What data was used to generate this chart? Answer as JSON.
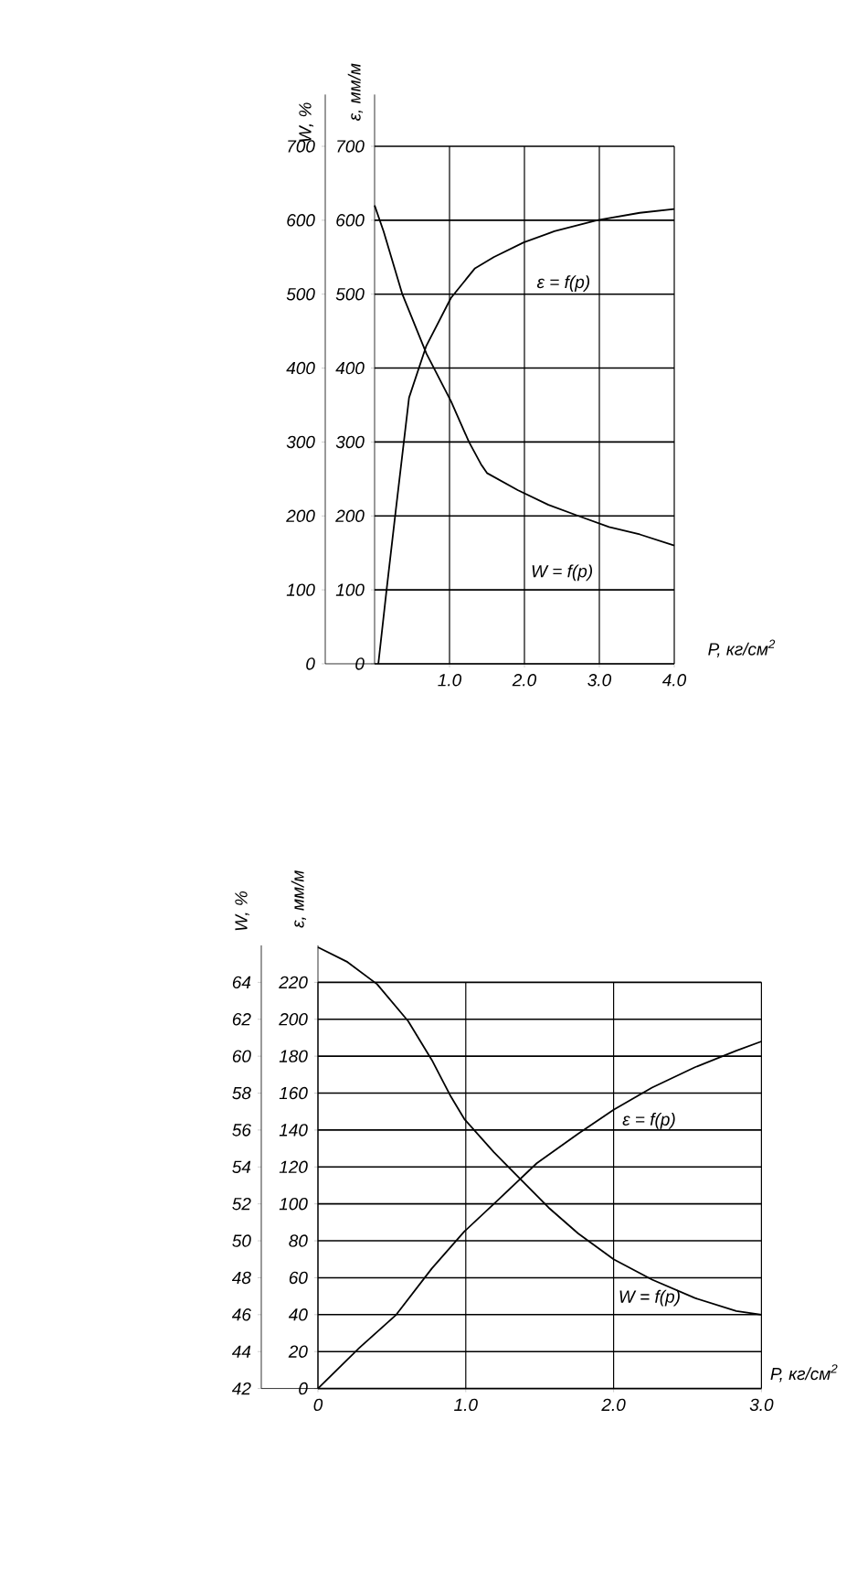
{
  "chart_data": [
    {
      "type": "line",
      "xlabel": "Р, кг/см$^{2}$",
      "ylabel": "W, %",
      "y2label": "ε, мм/м",
      "xlim": [
        0,
        4
      ],
      "xticks": [
        {
          "value": 1,
          "label": "1.0"
        },
        {
          "value": 2,
          "label": "2.0"
        },
        {
          "value": 3,
          "label": "3.0"
        },
        {
          "value": 4,
          "label": "4.0"
        }
      ],
      "ylim": [
        0,
        770
      ],
      "yticks": [
        0,
        100,
        200,
        300,
        400,
        500,
        600,
        700
      ],
      "y2lim": [
        0,
        770
      ],
      "y2ticks": [
        0,
        100,
        200,
        300,
        400,
        500,
        600,
        700
      ],
      "grid": true,
      "series": [
        {
          "name": "ε = f(p)",
          "color": "#000000",
          "axis": "y2",
          "x": [
            0.05,
            0.16,
            0.28,
            0.46,
            0.69,
            1.02,
            1.34,
            1.59,
            1.99,
            2.4,
            2.97,
            3.54,
            4.0
          ],
          "values": [
            0,
            100,
            205,
            360,
            430,
            495,
            535,
            550,
            570,
            585,
            600,
            610,
            615
          ]
        },
        {
          "name": "W = f(p)",
          "color": "#000000",
          "x": [
            0,
            0.12,
            0.37,
            0.69,
            1.02,
            1.26,
            1.42,
            1.5,
            1.91,
            2.32,
            2.72,
            3.13,
            3.54,
            4.0
          ],
          "values": [
            620,
            585,
            500,
            420,
            355,
            300,
            270,
            258,
            235,
            215,
            200,
            185,
            175,
            160
          ]
        }
      ]
    },
    {
      "type": "line",
      "xlabel": "Р, кг/см$^{2}$",
      "ylabel": "W, %",
      "y2label": "ε, мм/м",
      "xlim": [
        0,
        3
      ],
      "xticks": [
        0,
        {
          "value": 1,
          "label": "1.0"
        },
        {
          "value": 2,
          "label": "2.0"
        },
        {
          "value": 3,
          "label": "3.0"
        }
      ],
      "ylim": [
        42,
        66
      ],
      "yticks": [
        42,
        44,
        46,
        48,
        50,
        52,
        54,
        56,
        58,
        60,
        62,
        64
      ],
      "y2lim": [
        0,
        240
      ],
      "y2ticks": [
        0,
        20,
        40,
        60,
        80,
        100,
        120,
        140,
        160,
        180,
        200,
        220
      ],
      "grid": true,
      "series": [
        {
          "name": "ε = f(p)",
          "color": "#000000",
          "axis": "y2",
          "x": [
            0,
            0.28,
            0.53,
            0.77,
            0.99,
            1.23,
            1.48,
            1.76,
            2.0,
            2.26,
            2.55,
            2.83,
            3.0
          ],
          "values": [
            0,
            22,
            40,
            65,
            85,
            103,
            122,
            138,
            151,
            163,
            174,
            183,
            188
          ]
        },
        {
          "name": "W = f(p)",
          "color": "#000000",
          "x": [
            0,
            0.2,
            0.4,
            0.61,
            0.77,
            0.9,
            0.99,
            1.19,
            1.35,
            1.56,
            1.76,
            2.0,
            2.26,
            2.55,
            2.83,
            3.0
          ],
          "values": [
            65.9,
            65.1,
            63.9,
            61.9,
            59.8,
            57.8,
            56.6,
            54.8,
            53.5,
            51.8,
            50.4,
            49.0,
            47.9,
            46.9,
            46.2,
            46.0
          ]
        }
      ]
    }
  ]
}
